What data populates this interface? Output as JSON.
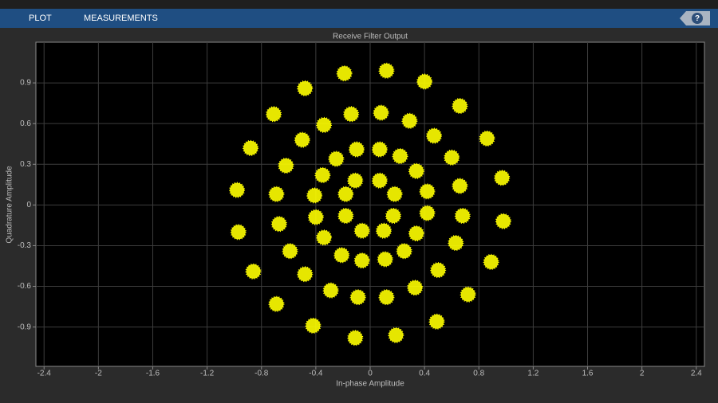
{
  "ui": {
    "tabs": [
      "PLOT",
      "MEASUREMENTS"
    ],
    "help": "?"
  },
  "chart_data": {
    "type": "scatter",
    "title": "Receive Filter Output",
    "x_label": "In-phase Amplitude",
    "y_label": "Quadrature Amplitude",
    "color": "#ffff00",
    "grid": true,
    "xlim": [
      -2.46,
      2.46
    ],
    "ylim": [
      -1.19,
      1.2
    ],
    "xticks": [
      -2.4,
      -2,
      -1.6,
      -1.2,
      -0.8,
      -0.4,
      0,
      0.4,
      0.8,
      1.2,
      1.6,
      2,
      2.4
    ],
    "yticks": [
      -0.9,
      -0.6,
      -0.3,
      0,
      0.3,
      0.6,
      0.9
    ],
    "x": [
      -0.11,
      0.07,
      0.18,
      0.17,
      0.1,
      -0.06,
      -0.18,
      -0.18,
      -0.41,
      -0.4,
      -0.34,
      -0.21,
      -0.06,
      0.11,
      0.25,
      0.34,
      0.42,
      0.42,
      0.34,
      0.22,
      0.07,
      -0.1,
      -0.25,
      -0.35,
      -0.69,
      -0.67,
      -0.59,
      -0.48,
      -0.29,
      -0.09,
      0.12,
      0.33,
      0.5,
      0.63,
      0.68,
      0.66,
      0.6,
      0.47,
      0.29,
      0.08,
      -0.14,
      -0.34,
      -0.5,
      -0.62,
      -0.98,
      -0.97,
      -0.86,
      -0.69,
      -0.42,
      -0.11,
      0.19,
      0.49,
      0.72,
      0.89,
      0.98,
      0.97,
      0.86,
      0.66,
      0.4,
      0.12,
      -0.19,
      -0.48,
      -0.71,
      -0.88
    ],
    "y": [
      0.18,
      0.18,
      0.08,
      -0.08,
      -0.19,
      -0.19,
      -0.08,
      0.08,
      0.07,
      -0.09,
      -0.24,
      -0.37,
      -0.41,
      -0.4,
      -0.34,
      -0.21,
      -0.06,
      0.1,
      0.25,
      0.36,
      0.41,
      0.41,
      0.34,
      0.22,
      0.08,
      -0.14,
      -0.34,
      -0.51,
      -0.63,
      -0.68,
      -0.68,
      -0.61,
      -0.48,
      -0.28,
      -0.08,
      0.14,
      0.35,
      0.51,
      0.62,
      0.68,
      0.67,
      0.59,
      0.48,
      0.29,
      0.11,
      -0.2,
      -0.49,
      -0.73,
      -0.89,
      -0.98,
      -0.96,
      -0.86,
      -0.66,
      -0.42,
      -0.12,
      0.2,
      0.49,
      0.73,
      0.91,
      0.99,
      0.97,
      0.86,
      0.67,
      0.42
    ]
  }
}
